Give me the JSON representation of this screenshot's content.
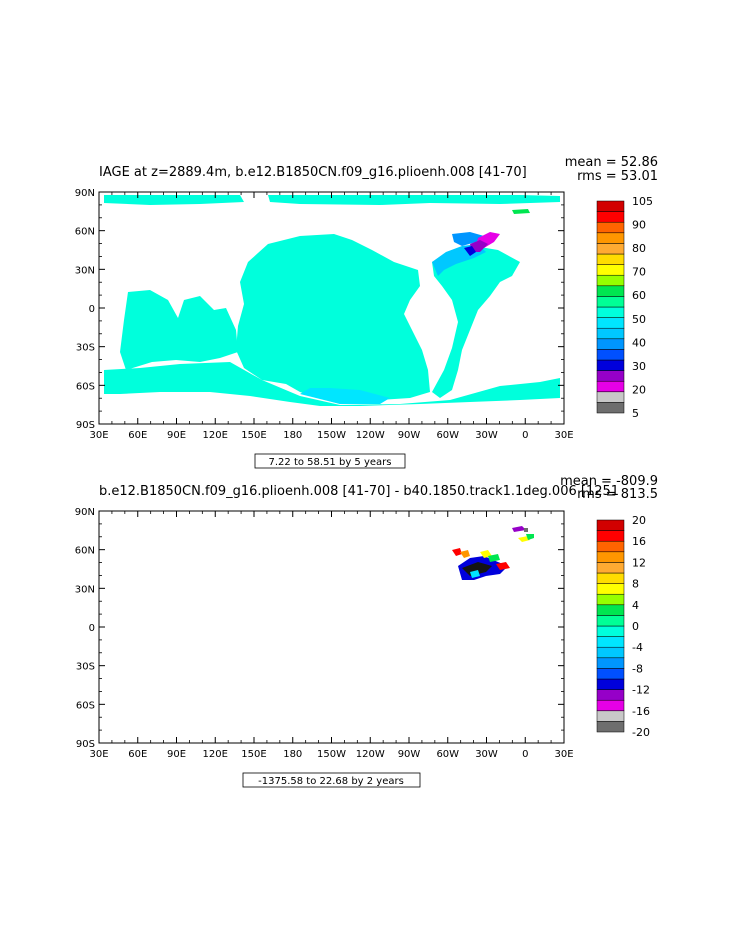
{
  "panels": [
    {
      "title": "IAGE at z=2889.4m, b.e12.B1850CN.f09_g16.plioenh.008 [41-70]",
      "stats": {
        "mean": "mean = 52.86",
        "rms": "rms = 53.01"
      },
      "range_label": "7.22 to 58.51 by 5 years",
      "colorbar": {
        "labels": [
          "105",
          "90",
          "80",
          "70",
          "60",
          "50",
          "40",
          "30",
          "20",
          "5"
        ]
      }
    },
    {
      "title": "b.e12.B1850CN.f09_g16.plioenh.008 [41-70] - b40.1850.track1.1deg.006 [1251",
      "stats": {
        "mean": "mean = -809.9",
        "rms": "rms = 813.5"
      },
      "range_label": "-1375.58 to 22.68 by 2 years",
      "colorbar": {
        "labels": [
          "20",
          "16",
          "12",
          "8",
          "4",
          "0",
          "-4",
          "-8",
          "-12",
          "-16",
          "-20"
        ]
      }
    }
  ],
  "axes": {
    "x_ticks": [
      "30E",
      "60E",
      "90E",
      "120E",
      "150E",
      "180",
      "150W",
      "120W",
      "90W",
      "60W",
      "30W",
      "0",
      "30E"
    ],
    "y_ticks": [
      "90N",
      "60N",
      "30N",
      "0",
      "30S",
      "60S",
      "90S"
    ]
  },
  "chart_data": [
    {
      "type": "heatmap",
      "title": "IAGE at z=2889.4m, b.e12.B1850CN.f09_g16.plioenh.008 [41-70]",
      "xlim": [
        30,
        390
      ],
      "ylim": [
        -90,
        90
      ],
      "x_tick_labels": [
        "30E",
        "60E",
        "90E",
        "120E",
        "150E",
        "180",
        "150W",
        "120W",
        "90W",
        "60W",
        "30W",
        "0",
        "30E"
      ],
      "y_tick_labels": [
        "90N",
        "60N",
        "30N",
        "0",
        "30S",
        "60S",
        "90S"
      ],
      "mean": 52.86,
      "rms": 53.01,
      "contour_min": 7.22,
      "contour_max": 58.51,
      "contour_interval": 5,
      "colorbar_levels": [
        5,
        20,
        30,
        40,
        50,
        60,
        70,
        80,
        90,
        105
      ],
      "colors": [
        "#6e6e6e",
        "#c8c8c8",
        "#e600e6",
        "#9600c8",
        "#0000dc",
        "#0050ff",
        "#0096ff",
        "#00c8ff",
        "#00e6ff",
        "#00ffdc",
        "#00ff96",
        "#00e650",
        "#96ff00",
        "#ffff00",
        "#ffdc00",
        "#ffaa32",
        "#ff9600",
        "#ff6400",
        "#ff0000",
        "#d20000"
      ]
    },
    {
      "type": "heatmap",
      "title": "b.e12.B1850CN.f09_g16.plioenh.008 [41-70] - b40.1850.track1.1deg.006 [1251",
      "xlim": [
        30,
        390
      ],
      "ylim": [
        -90,
        90
      ],
      "x_tick_labels": [
        "30E",
        "60E",
        "90E",
        "120E",
        "150E",
        "180",
        "150W",
        "120W",
        "90W",
        "60W",
        "30W",
        "0",
        "30E"
      ],
      "y_tick_labels": [
        "90N",
        "60N",
        "30N",
        "0",
        "30S",
        "60S",
        "90S"
      ],
      "mean": -809.9,
      "rms": 813.5,
      "contour_min": -1375.58,
      "contour_max": 22.68,
      "contour_interval": 2,
      "colorbar_levels": [
        -20,
        -16,
        -12,
        -8,
        -4,
        0,
        4,
        8,
        12,
        16,
        20
      ],
      "colors": [
        "#6e6e6e",
        "#c8c8c8",
        "#e600e6",
        "#9600c8",
        "#0000dc",
        "#0050ff",
        "#0096ff",
        "#00c8ff",
        "#00e6ff",
        "#00ffdc",
        "#00ff96",
        "#00e650",
        "#96ff00",
        "#ffff00",
        "#ffdc00",
        "#ffaa32",
        "#ff9600",
        "#ff6400",
        "#ff0000",
        "#d20000"
      ]
    }
  ]
}
